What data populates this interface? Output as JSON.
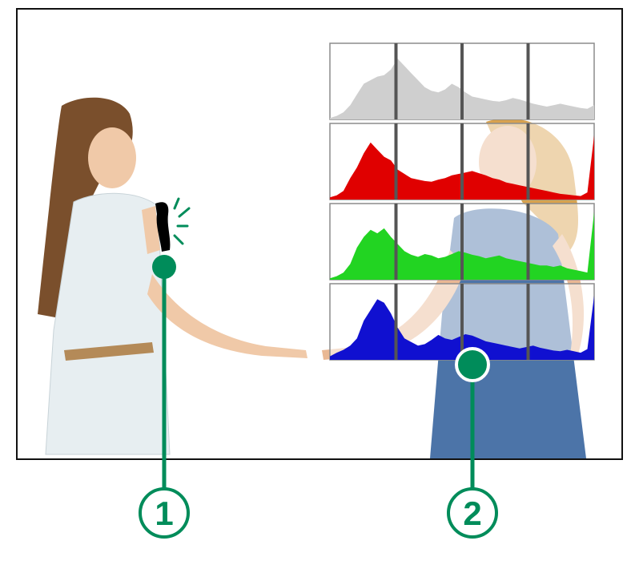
{
  "colors": {
    "callout": "#008C5A",
    "frame": "#111111",
    "luminance": "#cfcfcf",
    "red": "#e00000",
    "green": "#22d422",
    "blue": "#1010d0",
    "highlight_warning": "#000000"
  },
  "callouts": [
    {
      "id": "1",
      "label": "1"
    },
    {
      "id": "2",
      "label": "2"
    }
  ],
  "histograms": {
    "luminance": {
      "color": "#cfcfcf",
      "heights": [
        0.02,
        0.05,
        0.1,
        0.2,
        0.35,
        0.5,
        0.55,
        0.6,
        0.62,
        0.7,
        0.85,
        0.75,
        0.65,
        0.55,
        0.45,
        0.4,
        0.38,
        0.42,
        0.5,
        0.45,
        0.38,
        0.32,
        0.3,
        0.28,
        0.26,
        0.25,
        0.27,
        0.3,
        0.28,
        0.25,
        0.22,
        0.2,
        0.18,
        0.2,
        0.22,
        0.2,
        0.18,
        0.16,
        0.15,
        0.2
      ]
    },
    "red": {
      "color": "#e00000",
      "heights": [
        0.03,
        0.06,
        0.12,
        0.3,
        0.45,
        0.65,
        0.8,
        0.7,
        0.6,
        0.55,
        0.42,
        0.36,
        0.3,
        0.28,
        0.26,
        0.25,
        0.28,
        0.3,
        0.34,
        0.36,
        0.38,
        0.4,
        0.37,
        0.34,
        0.3,
        0.28,
        0.24,
        0.22,
        0.2,
        0.18,
        0.16,
        0.14,
        0.12,
        0.1,
        0.08,
        0.07,
        0.06,
        0.05,
        0.1,
        0.9
      ]
    },
    "green": {
      "color": "#22d422",
      "heights": [
        0.02,
        0.05,
        0.1,
        0.22,
        0.45,
        0.6,
        0.7,
        0.65,
        0.72,
        0.6,
        0.5,
        0.4,
        0.35,
        0.32,
        0.36,
        0.34,
        0.3,
        0.32,
        0.36,
        0.4,
        0.38,
        0.35,
        0.33,
        0.3,
        0.32,
        0.34,
        0.3,
        0.28,
        0.26,
        0.24,
        0.22,
        0.2,
        0.2,
        0.18,
        0.2,
        0.16,
        0.14,
        0.12,
        0.1,
        0.95
      ]
    },
    "blue": {
      "color": "#1010d0",
      "heights": [
        0.05,
        0.1,
        0.14,
        0.2,
        0.3,
        0.55,
        0.7,
        0.85,
        0.8,
        0.65,
        0.45,
        0.3,
        0.25,
        0.2,
        0.22,
        0.28,
        0.35,
        0.3,
        0.28,
        0.32,
        0.36,
        0.34,
        0.3,
        0.26,
        0.24,
        0.22,
        0.2,
        0.18,
        0.16,
        0.18,
        0.2,
        0.17,
        0.15,
        0.13,
        0.12,
        0.14,
        0.12,
        0.1,
        0.15,
        0.9
      ]
    }
  }
}
